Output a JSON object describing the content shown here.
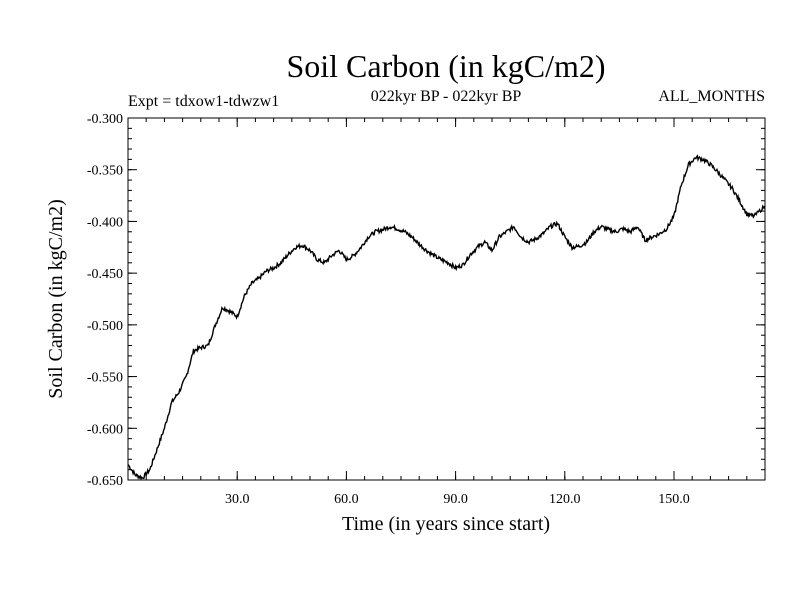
{
  "chart_data": {
    "type": "line",
    "title": "Soil Carbon (in kgC/m2)",
    "left_label": "Expt = tdxow1-tdwzw1",
    "center_label": "022kyr BP - 022kyr BP",
    "right_label": "ALL_MONTHS",
    "xlabel": "Time (in years since start)",
    "ylabel": "Soil Carbon (in kgC/m2)",
    "xlim": [
      0,
      175
    ],
    "ylim": [
      -0.65,
      -0.3
    ],
    "xticks": [
      30,
      60,
      90,
      120,
      150
    ],
    "xtick_labels": [
      "30.0",
      "60.0",
      "90.0",
      "120.0",
      "150.0"
    ],
    "yticks": [
      -0.3,
      -0.35,
      -0.4,
      -0.45,
      -0.5,
      -0.55,
      -0.6,
      -0.65
    ],
    "ytick_labels": [
      "-0.300",
      "-0.350",
      "-0.400",
      "-0.450",
      "-0.500",
      "-0.550",
      "-0.600",
      "-0.650"
    ],
    "grid": false,
    "series": [
      {
        "name": "Soil Carbon",
        "x": [
          0,
          2,
          4,
          6,
          8,
          10,
          12,
          14,
          16,
          18,
          20,
          22,
          24,
          26,
          28,
          30,
          32,
          34,
          36,
          38,
          40,
          42,
          44,
          46,
          48,
          50,
          52,
          54,
          56,
          58,
          60,
          62,
          64,
          66,
          68,
          70,
          72,
          74,
          76,
          78,
          80,
          82,
          84,
          86,
          88,
          90,
          92,
          94,
          96,
          98,
          100,
          102,
          104,
          106,
          108,
          110,
          112,
          114,
          116,
          118,
          120,
          122,
          124,
          126,
          128,
          130,
          132,
          134,
          136,
          138,
          140,
          142,
          144,
          146,
          148,
          150,
          152,
          154,
          156,
          158,
          160,
          162,
          164,
          166,
          168,
          170,
          172,
          175
        ],
        "values": [
          -0.635,
          -0.645,
          -0.648,
          -0.64,
          -0.62,
          -0.6,
          -0.575,
          -0.565,
          -0.55,
          -0.525,
          -0.522,
          -0.52,
          -0.5,
          -0.483,
          -0.487,
          -0.492,
          -0.472,
          -0.46,
          -0.455,
          -0.448,
          -0.445,
          -0.44,
          -0.432,
          -0.425,
          -0.423,
          -0.428,
          -0.437,
          -0.44,
          -0.433,
          -0.428,
          -0.437,
          -0.433,
          -0.425,
          -0.415,
          -0.41,
          -0.408,
          -0.405,
          -0.407,
          -0.41,
          -0.415,
          -0.422,
          -0.428,
          -0.433,
          -0.437,
          -0.44,
          -0.445,
          -0.442,
          -0.432,
          -0.425,
          -0.42,
          -0.428,
          -0.415,
          -0.41,
          -0.405,
          -0.415,
          -0.42,
          -0.417,
          -0.412,
          -0.405,
          -0.402,
          -0.415,
          -0.425,
          -0.424,
          -0.42,
          -0.41,
          -0.405,
          -0.408,
          -0.41,
          -0.407,
          -0.41,
          -0.405,
          -0.418,
          -0.415,
          -0.412,
          -0.407,
          -0.395,
          -0.365,
          -0.345,
          -0.338,
          -0.34,
          -0.345,
          -0.352,
          -0.36,
          -0.368,
          -0.38,
          -0.393,
          -0.395,
          -0.385
        ]
      }
    ]
  }
}
